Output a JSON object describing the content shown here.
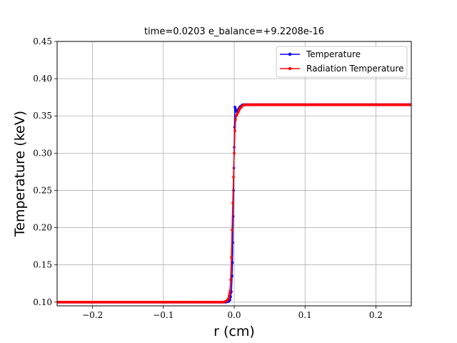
{
  "chart_data": {
    "type": "line",
    "title": "time=0.0203 e_balance=+9.2208e-16",
    "xlabel": "r (cm)",
    "ylabel": "Temperature (keV)",
    "xlim": [
      -0.25,
      0.25
    ],
    "ylim": [
      0.095,
      0.45
    ],
    "xticks": [
      -0.2,
      -0.1,
      0.0,
      0.1,
      0.2
    ],
    "xtick_labels": [
      "−0.2",
      "−0.1",
      "0.0",
      "0.1",
      "0.2"
    ],
    "yticks": [
      0.1,
      0.15,
      0.2,
      0.25,
      0.3,
      0.35,
      0.4,
      0.45
    ],
    "ytick_labels": [
      "0.10",
      "0.15",
      "0.20",
      "0.25",
      "0.30",
      "0.35",
      "0.40",
      "0.45"
    ],
    "grid": true,
    "legend_position": "top-right",
    "series": [
      {
        "name": "Temperature",
        "color": "#0000ff",
        "x": [
          -0.25,
          -0.012,
          -0.008,
          -0.006,
          -0.005,
          -0.004,
          -0.003,
          -0.0025,
          -0.002,
          -0.0015,
          -0.001,
          -0.0005,
          0.0,
          0.0005,
          0.001,
          0.0015,
          0.002,
          0.003,
          0.004,
          0.006,
          0.008,
          0.012,
          0.25
        ],
        "y": [
          0.1,
          0.1,
          0.101,
          0.103,
          0.107,
          0.114,
          0.135,
          0.153,
          0.18,
          0.215,
          0.25,
          0.28,
          0.308,
          0.335,
          0.362,
          0.36,
          0.357,
          0.356,
          0.357,
          0.359,
          0.362,
          0.365,
          0.365
        ]
      },
      {
        "name": "Radiation Temperature",
        "color": "#ff0000",
        "x": [
          -0.25,
          -0.015,
          -0.01,
          -0.008,
          -0.006,
          -0.005,
          -0.004,
          -0.003,
          -0.002,
          -0.001,
          0.0,
          0.001,
          0.002,
          0.003,
          0.004,
          0.006,
          0.008,
          0.012,
          0.015,
          0.25
        ],
        "y": [
          0.1,
          0.1,
          0.102,
          0.105,
          0.115,
          0.13,
          0.16,
          0.197,
          0.233,
          0.268,
          0.3,
          0.33,
          0.345,
          0.35,
          0.352,
          0.356,
          0.36,
          0.364,
          0.365,
          0.365
        ]
      }
    ]
  }
}
